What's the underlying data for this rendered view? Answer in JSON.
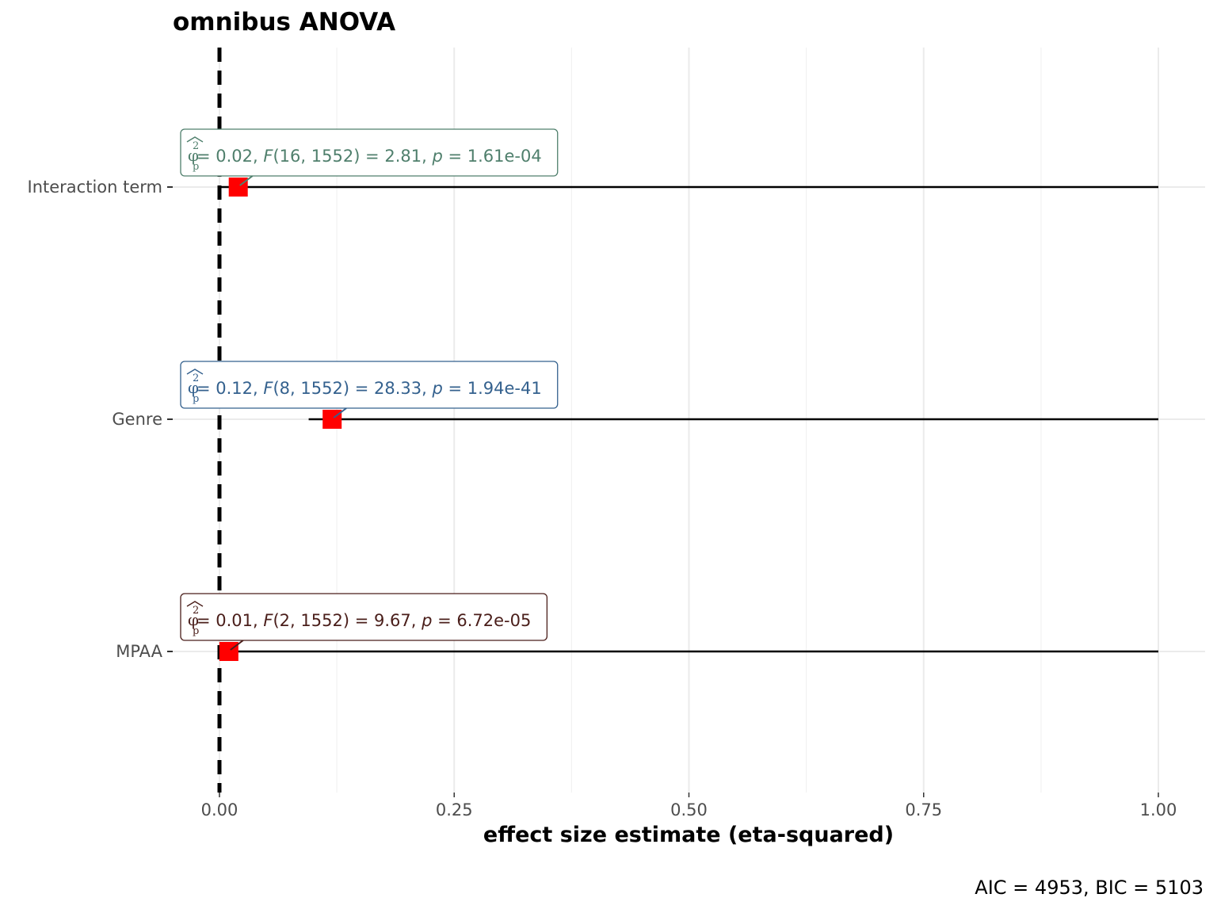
{
  "chart_data": {
    "type": "dot-whisker",
    "title": "omnibus ANOVA",
    "xlabel": "effect size estimate (eta-squared)",
    "ylabel": "",
    "caption": "AIC = 4953, BIC = 5103",
    "xlim": [
      0,
      1
    ],
    "xticks": [
      0,
      0.25,
      0.5,
      0.75,
      1
    ],
    "xtick_labels": [
      "0.00",
      "0.25",
      "0.50",
      "0.75",
      "1.00"
    ],
    "reference_line": 0,
    "grid": true,
    "terms": [
      {
        "term": "Interaction term",
        "estimate": 0.02,
        "ci_low": 0.0,
        "ci_high": 1.0,
        "label": {
          "sym": "φ",
          "sup": "2",
          "sub": "p",
          "est": "0.02",
          "df1": "16",
          "df2": "1552",
          "stat": "2.81",
          "p": "1.61e-04"
        },
        "label_color": "#4f7f6c"
      },
      {
        "term": "Genre",
        "estimate": 0.12,
        "ci_low": 0.095,
        "ci_high": 1.0,
        "label": {
          "sym": "φ",
          "sup": "2",
          "sub": "p",
          "est": "0.12",
          "df1": "8",
          "df2": "1552",
          "stat": "28.33",
          "p": "1.94e-41"
        },
        "label_color": "#34618e"
      },
      {
        "term": "MPAA",
        "estimate": 0.01,
        "ci_low": 0.004,
        "ci_high": 1.0,
        "label": {
          "sym": "φ",
          "sup": "2",
          "sub": "p",
          "est": "0.01",
          "df1": "2",
          "df2": "1552",
          "stat": "9.67",
          "p": "6.72e-05"
        },
        "label_color": "#4a1e1a"
      }
    ],
    "point_color": "#ff0000"
  }
}
